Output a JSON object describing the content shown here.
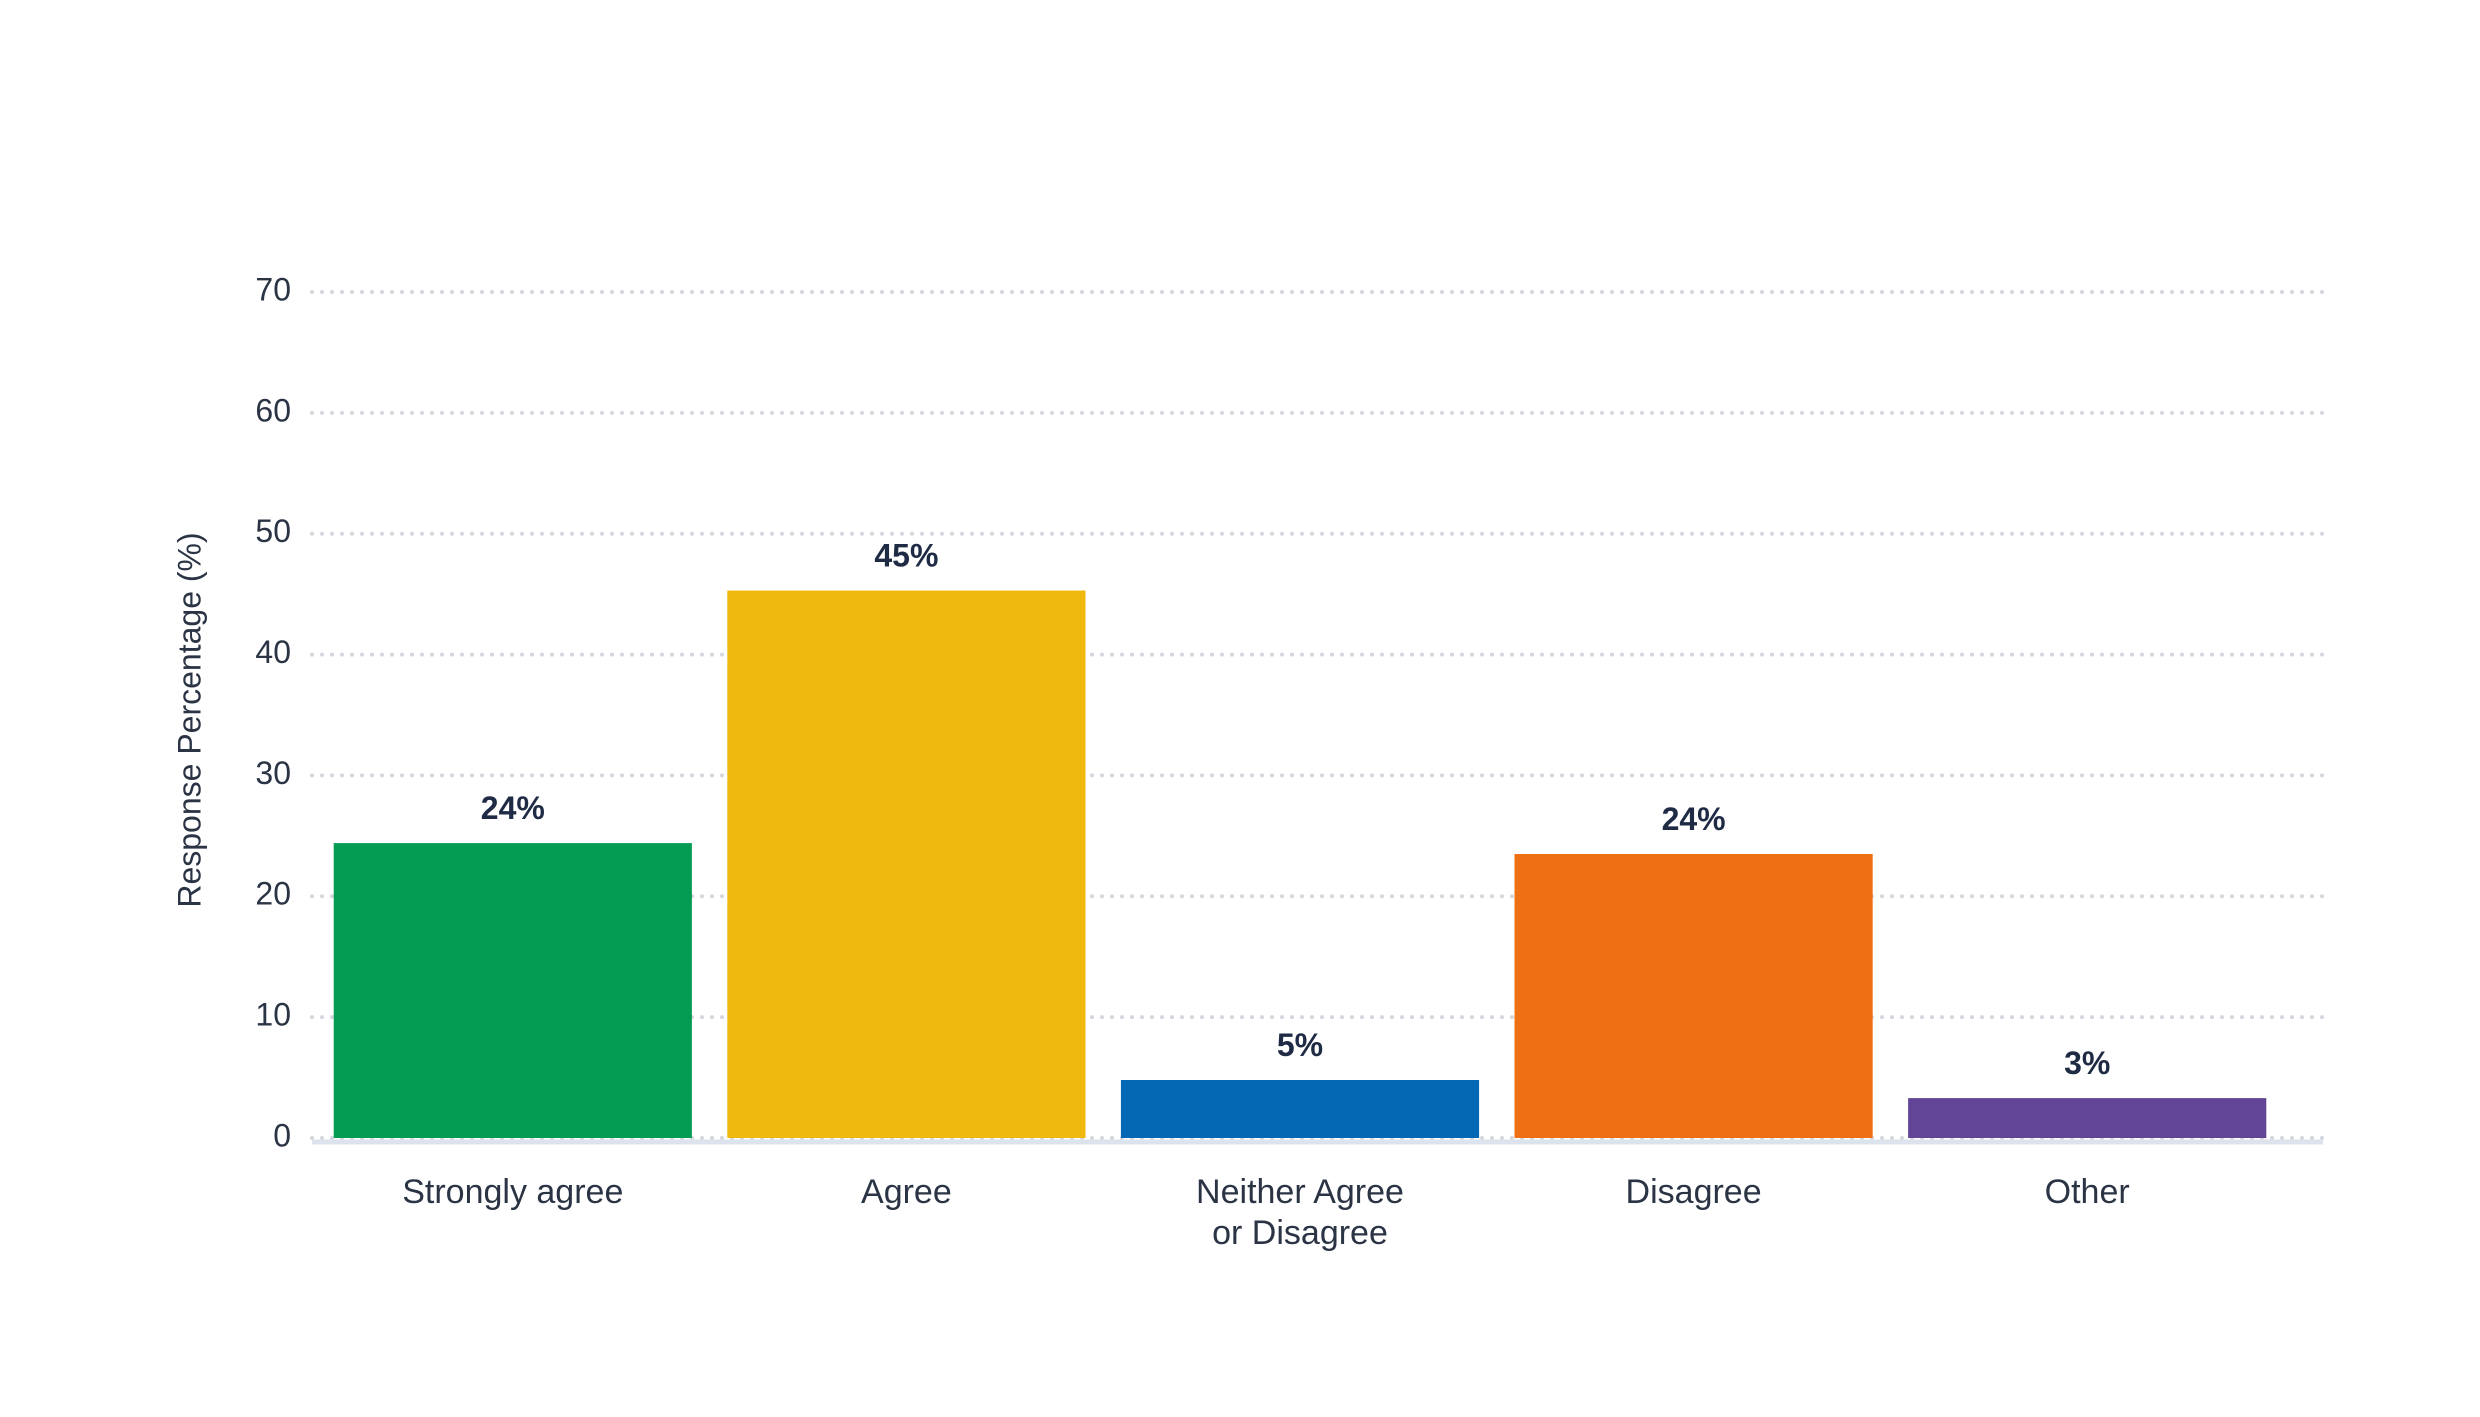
{
  "chart_data": {
    "type": "bar",
    "y_label": "Response Percentage (%)",
    "categories": [
      "Strongly agree",
      "Agree",
      "Neither Agree\nor Disagree",
      "Disagree",
      "Other"
    ],
    "values": [
      24.4,
      45.3,
      4.8,
      23.5,
      3.3
    ],
    "value_labels": [
      "24%",
      "45%",
      "5%",
      "24%",
      "3%"
    ],
    "colors": [
      "#049b53",
      "#f0b910",
      "#0468b4",
      "#ef7012",
      "#634597"
    ],
    "ylim": [
      0,
      70
    ],
    "yticks": [
      0,
      10,
      20,
      30,
      40,
      50,
      60,
      70
    ],
    "grid": true
  }
}
